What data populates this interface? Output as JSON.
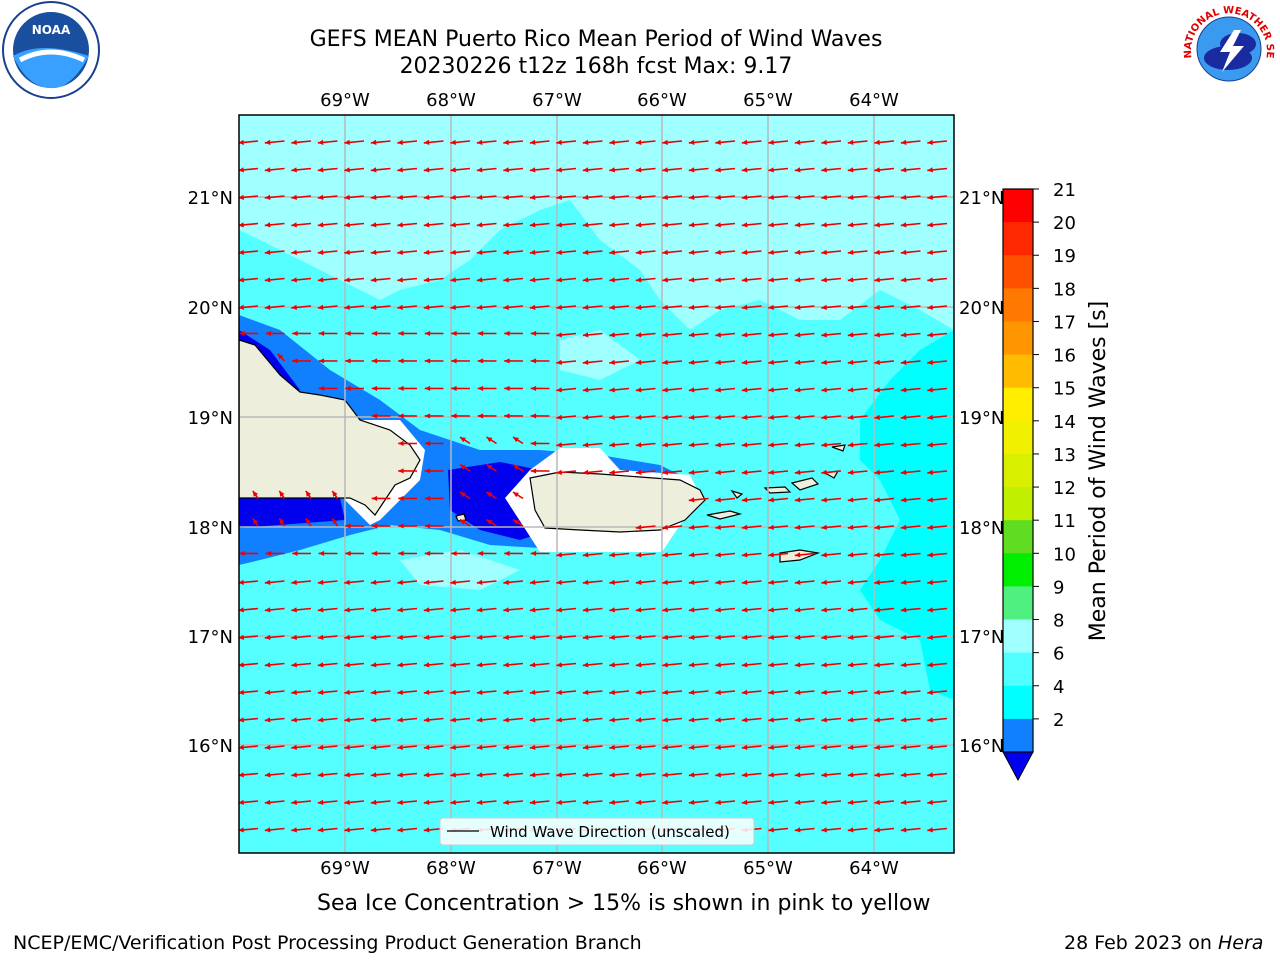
{
  "title_line1": "GEFS MEAN Puerto Rico Mean Period of Wind Waves",
  "title_line2": "20230226 t12z 168h fcst   Max: 9.17",
  "lon_labels": [
    "69°W",
    "68°W",
    "67°W",
    "66°W",
    "65°W",
    "64°W"
  ],
  "lat_labels": [
    "21°N",
    "20°N",
    "19°N",
    "18°N",
    "17°N",
    "16°N"
  ],
  "legend_label": "Wind Wave Direction (unscaled)",
  "colorbar": {
    "label": "Mean Period of Wind Waves [s]",
    "ticks": [
      "21",
      "20",
      "19",
      "18",
      "17",
      "16",
      "15",
      "14",
      "13",
      "12",
      "11",
      "10",
      "9",
      "8",
      "6",
      "4",
      "2"
    ],
    "colors": [
      "#ff0000",
      "#ff2800",
      "#ff5000",
      "#ff7800",
      "#ff9600",
      "#ffbb00",
      "#ffee00",
      "#f0f000",
      "#d8f000",
      "#c0f000",
      "#60dd20",
      "#00ee00",
      "#50f080",
      "#a0ffff",
      "#50ffff",
      "#00ffff",
      "#1080ff"
    ],
    "under_color": "#0000ee"
  },
  "map_colors": {
    "sea_light": "#55ffff",
    "sea_cyan": "#00ffff",
    "sea_pale": "#a0ffff",
    "sea_blue": "#1080ff",
    "sea_dark": "#0000ee",
    "land": "#eeeedd",
    "arrow": "#ee0000"
  },
  "subtitle": "Sea Ice Concentration > 15% is shown in pink to yellow",
  "footer_left": "NCEP/EMC/Verification Post Processing Product Generation Branch",
  "footer_date": "28 Feb 2023 on",
  "footer_machine": "Hera",
  "logos": {
    "left_text": "NOAA",
    "right_text": "NATIONAL WEATHER SERVICE"
  }
}
